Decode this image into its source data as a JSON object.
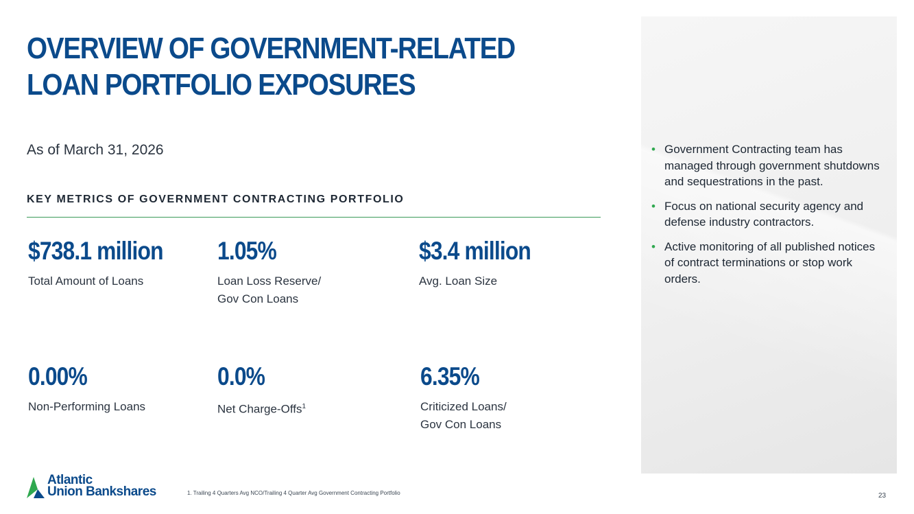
{
  "title": "OVERVIEW OF GOVERNMENT-RELATED LOAN PORTFOLIO EXPOSURES",
  "as_of": "As of March 31, 2026",
  "section_heading": "KEY METRICS OF GOVERNMENT CONTRACTING PORTFOLIO",
  "metrics": [
    {
      "value": "$738.1 million",
      "label": "Total Amount of Loans"
    },
    {
      "value": "1.05%",
      "label": "Loan Loss Reserve/ Gov Con Loans"
    },
    {
      "value": "$3.4 million",
      "label": "Avg. Loan Size"
    },
    {
      "value": "0.00%",
      "label": "Non-Performing Loans"
    },
    {
      "value": "0.0%",
      "label": "Net Charge-Offs",
      "footnote_ref": "1"
    },
    {
      "value": "6.35%",
      "label": "Criticized Loans/ Gov Con Loans"
    }
  ],
  "bullets": [
    "Government Contracting team has managed through government shutdowns and sequestrations in the past.",
    "Focus on national security agency and defense industry contractors.",
    "Active monitoring of all published notices of contract terminations or stop work orders."
  ],
  "logo": {
    "line1": "Atlantic",
    "line2": "Union Bankshares"
  },
  "footnote": "1. Trailing 4 Quarters Avg NCO/Trailing 4 Quarter Avg Government Contracting Portfolio",
  "page_number": "23",
  "colors": {
    "brand_blue": "#0b4a8b",
    "brand_green": "#2fa84f",
    "panel_gray": "#efefef"
  }
}
